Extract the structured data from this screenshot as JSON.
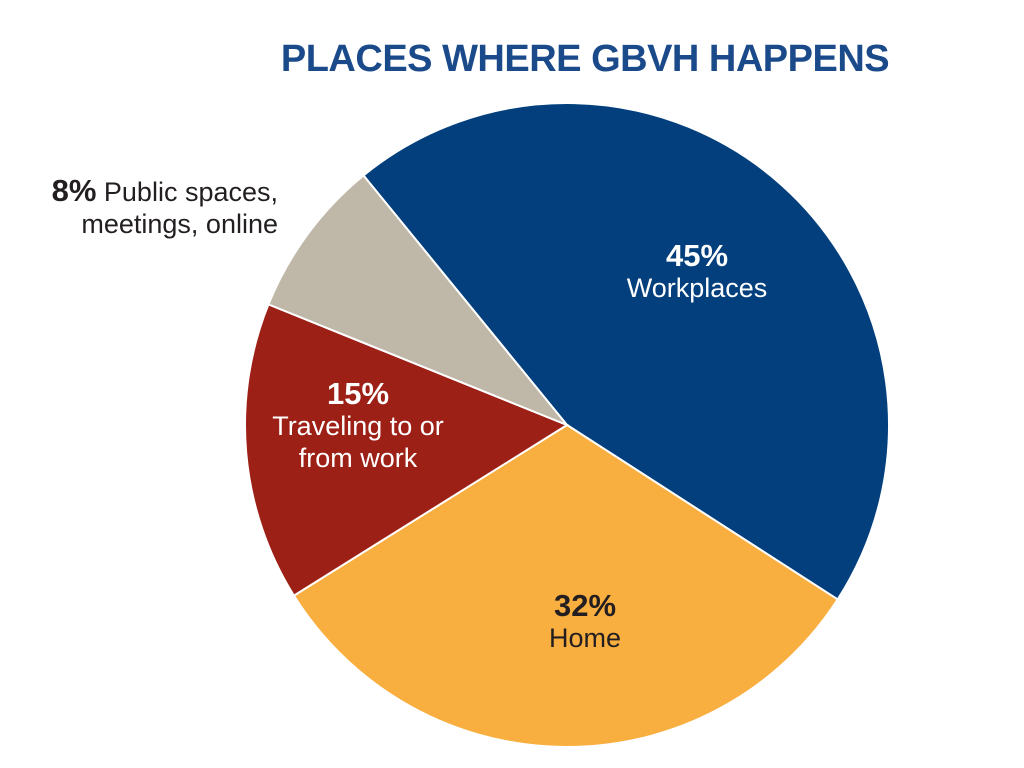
{
  "chart_data": {
    "type": "pie",
    "title": "PLACES WHERE GBVH HAPPENS",
    "categories": [
      "Workplaces",
      "Home",
      "Traveling to or from work",
      "Public spaces, meetings, online"
    ],
    "values": [
      45,
      32,
      15,
      8
    ],
    "value_labels": [
      "45%",
      "32%",
      "15%",
      "8%"
    ],
    "colors": [
      "#023f7c",
      "#f9ae40",
      "#9d2016",
      "#bfb8a8"
    ]
  }
}
